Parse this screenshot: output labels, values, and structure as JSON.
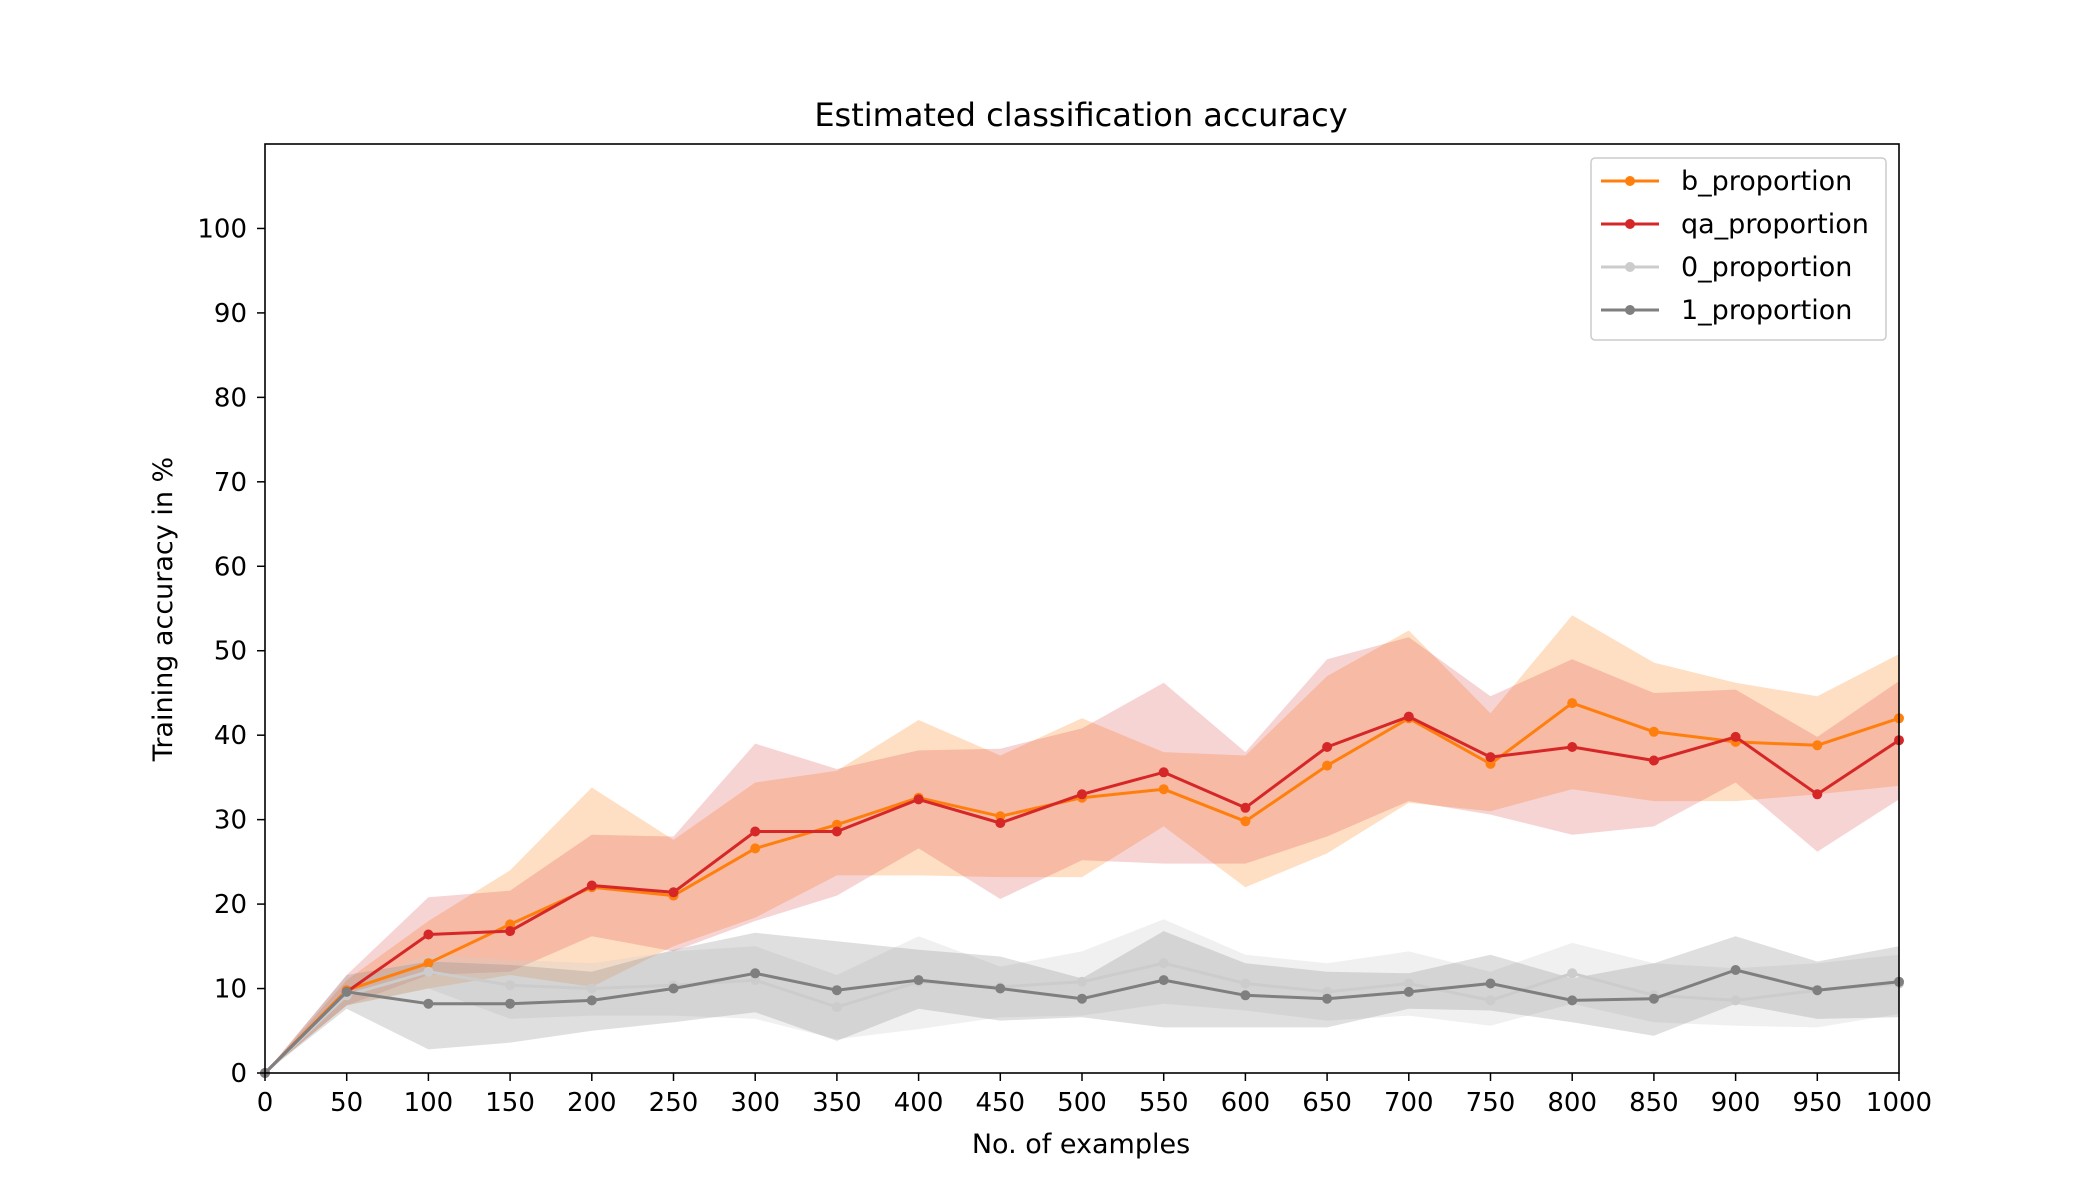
{
  "chart_data": {
    "type": "line",
    "title": "Estimated classification accuracy",
    "xlabel": "No. of examples",
    "ylabel": "Training accuracy in %",
    "xlim": [
      0,
      1000
    ],
    "ylim": [
      0,
      110
    ],
    "xticks": [
      0,
      50,
      100,
      150,
      200,
      250,
      300,
      350,
      400,
      450,
      500,
      550,
      600,
      650,
      700,
      750,
      800,
      850,
      900,
      950,
      1000
    ],
    "yticks": [
      0,
      10,
      20,
      30,
      40,
      50,
      60,
      70,
      80,
      90,
      100
    ],
    "grid": false,
    "legend_position": "top-right",
    "x": [
      0,
      50,
      100,
      150,
      200,
      250,
      300,
      350,
      400,
      450,
      500,
      550,
      600,
      650,
      700,
      750,
      800,
      850,
      900,
      950,
      1000
    ],
    "series": [
      {
        "name": "b_proportion",
        "color": "#ff7f0e",
        "band_opacity": 0.25,
        "values": [
          0,
          9.8,
          13.0,
          17.6,
          22.0,
          21.0,
          26.6,
          29.4,
          32.6,
          30.4,
          32.6,
          33.6,
          29.8,
          36.4,
          42.0,
          36.6,
          43.8,
          40.4,
          39.2,
          38.8,
          42.0
        ],
        "upper": [
          0,
          11.0,
          18.0,
          24.0,
          33.8,
          27.6,
          34.4,
          35.8,
          41.8,
          37.6,
          42.0,
          38.0,
          37.6,
          47.0,
          52.4,
          42.6,
          54.2,
          48.6,
          46.2,
          44.6,
          49.6
        ],
        "lower": [
          0,
          8.0,
          10.0,
          11.6,
          10.2,
          15.0,
          18.4,
          23.4,
          23.4,
          23.2,
          23.2,
          29.2,
          22.0,
          26.0,
          32.0,
          31.0,
          33.6,
          32.2,
          32.2,
          33.0,
          34.0
        ]
      },
      {
        "name": "qa_proportion",
        "color": "#d62728",
        "band_opacity": 0.2,
        "values": [
          0,
          9.6,
          16.4,
          16.8,
          22.2,
          21.4,
          28.6,
          28.6,
          32.4,
          29.6,
          33.0,
          35.6,
          31.4,
          38.6,
          42.2,
          37.4,
          38.6,
          37.0,
          39.8,
          33.0,
          39.4
        ],
        "upper": [
          0,
          11.6,
          20.8,
          21.6,
          28.2,
          28.0,
          39.0,
          36.0,
          38.2,
          38.4,
          40.8,
          46.2,
          38.0,
          49.0,
          51.6,
          44.6,
          49.0,
          45.0,
          45.4,
          39.8,
          46.4
        ],
        "lower": [
          0,
          8.0,
          11.6,
          12.0,
          16.2,
          14.4,
          18.0,
          21.0,
          26.6,
          20.6,
          25.2,
          24.8,
          24.8,
          28.0,
          32.2,
          30.6,
          28.2,
          29.2,
          34.4,
          26.2,
          32.4
        ]
      },
      {
        "name": "0_proportion",
        "color": "#cccccc",
        "band_opacity": 0.3,
        "values": [
          0,
          9.2,
          12.0,
          10.4,
          10.0,
          10.4,
          11.0,
          7.8,
          10.8,
          10.2,
          10.8,
          13.0,
          10.6,
          9.6,
          10.6,
          8.6,
          11.8,
          9.2,
          8.6,
          9.8,
          10.6
        ],
        "upper": [
          0,
          10.4,
          14.0,
          13.4,
          13.0,
          14.4,
          15.0,
          11.6,
          16.2,
          12.6,
          14.4,
          18.2,
          14.0,
          13.0,
          14.4,
          12.0,
          15.4,
          13.0,
          12.4,
          13.0,
          14.0
        ],
        "lower": [
          0,
          8.0,
          10.0,
          6.4,
          6.8,
          6.8,
          6.4,
          4.0,
          5.2,
          6.6,
          6.8,
          8.2,
          7.4,
          6.2,
          6.8,
          5.6,
          8.2,
          6.0,
          5.6,
          5.4,
          7.0
        ]
      },
      {
        "name": "1_proportion",
        "color": "#7f7f7f",
        "band_opacity": 0.25,
        "values": [
          0,
          9.6,
          8.2,
          8.2,
          8.6,
          10.0,
          11.8,
          9.8,
          11.0,
          10.0,
          8.8,
          11.0,
          9.2,
          8.8,
          9.6,
          10.6,
          8.6,
          8.8,
          12.2,
          9.8,
          10.8
        ],
        "upper": [
          0,
          11.6,
          13.2,
          12.8,
          12.0,
          14.6,
          16.6,
          15.6,
          14.6,
          13.8,
          11.2,
          16.8,
          13.0,
          12.0,
          11.8,
          14.0,
          11.2,
          13.0,
          16.2,
          13.2,
          15.0
        ],
        "lower": [
          0,
          7.6,
          2.8,
          3.6,
          5.0,
          6.0,
          7.2,
          3.8,
          7.6,
          6.2,
          6.6,
          5.4,
          5.4,
          5.4,
          7.6,
          7.4,
          6.0,
          4.4,
          8.2,
          6.4,
          6.6
        ]
      }
    ]
  }
}
